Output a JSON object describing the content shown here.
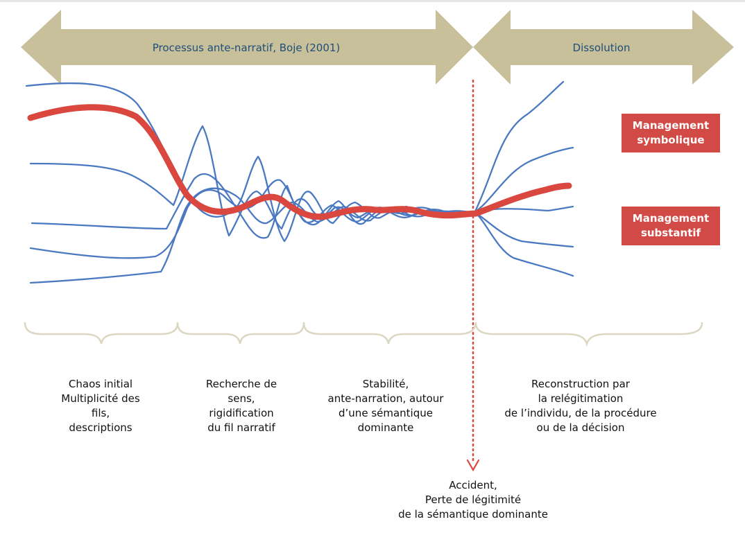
{
  "arrows": {
    "left_label": "Processus ante-narratif, Boje (2001)",
    "right_label": "Dissolution",
    "color": "#c7c09b"
  },
  "tags": {
    "symbolique": [
      "Management",
      "symbolique"
    ],
    "substantif": [
      "Management",
      "substantif"
    ],
    "color": "#d24a45"
  },
  "phases": {
    "p1": [
      "Chaos initial",
      "Multiplicité des",
      "fils,",
      "descriptions"
    ],
    "p2": [
      "Recherche de",
      "sens,",
      "rigidification",
      "du fil narratif"
    ],
    "p3": [
      "Stabilité,",
      "ante-narration, autour",
      "d’une sémantique",
      "dominante"
    ],
    "p4": [
      "Reconstruction par",
      "la relégitimation",
      "de l’individu, de la procédure",
      "ou de la décision"
    ]
  },
  "accident": [
    "Accident,",
    "Perte de légitimité",
    "de la sémantique dominante"
  ],
  "colors": {
    "blue_lines": "#4a79c2",
    "red_line": "#d9473f",
    "braces": "#dcd7c2",
    "marker": "#d9473f"
  }
}
